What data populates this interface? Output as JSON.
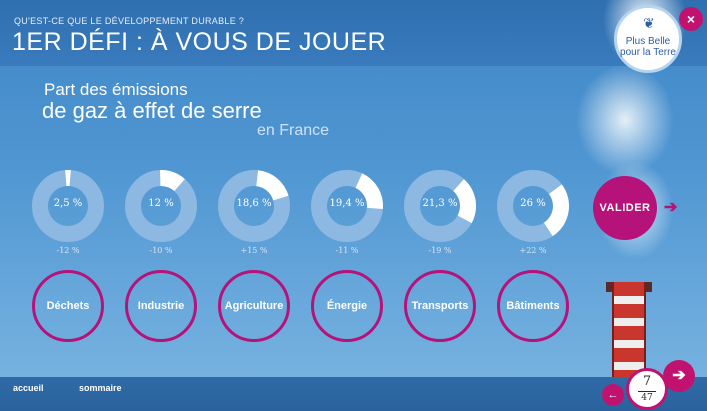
{
  "header": {
    "kicker": "QU'EST-CE QUE LE DÉVELOPPEMENT DURABLE ?",
    "title": "1ER DÉFI : À VOUS DE JOUER"
  },
  "logo": {
    "text_line1": "Plus Belle",
    "text_line2": "pour la Terre"
  },
  "close_label": "×",
  "chart_title": {
    "line1": "Part des émissions",
    "line2": "de gaz à effet de serre",
    "line3": "en France"
  },
  "chart_data": {
    "type": "pie",
    "title": "Part des émissions de gaz à effet de serre en France",
    "items": [
      {
        "label": "2,5 %",
        "value": 2.5,
        "delta": "-12 %"
      },
      {
        "label": "12 %",
        "value": 12,
        "delta": "-10 %"
      },
      {
        "label": "18,6 %",
        "value": 18.6,
        "delta": "+15 %"
      },
      {
        "label": "19,4 %",
        "value": 19.4,
        "delta": "-11 %"
      },
      {
        "label": "21,3 %",
        "value": 21.3,
        "delta": "-19 %"
      },
      {
        "label": "26 %",
        "value": 26,
        "delta": "+22 %"
      }
    ]
  },
  "categories": [
    "Déchets",
    "Industrie",
    "Agriculture",
    "Énergie",
    "Transports",
    "Bâtiments"
  ],
  "validate_label": "VALIDER",
  "arrow_right": "➔",
  "footer": {
    "home": "accueil",
    "summary": "sommaire"
  },
  "pager": {
    "current": "7",
    "total": "47"
  },
  "nav": {
    "next": "➔",
    "prev": "←"
  },
  "colors": {
    "accent": "#b5127a",
    "ring": "#8db8e2",
    "fill": "#ffffff"
  }
}
